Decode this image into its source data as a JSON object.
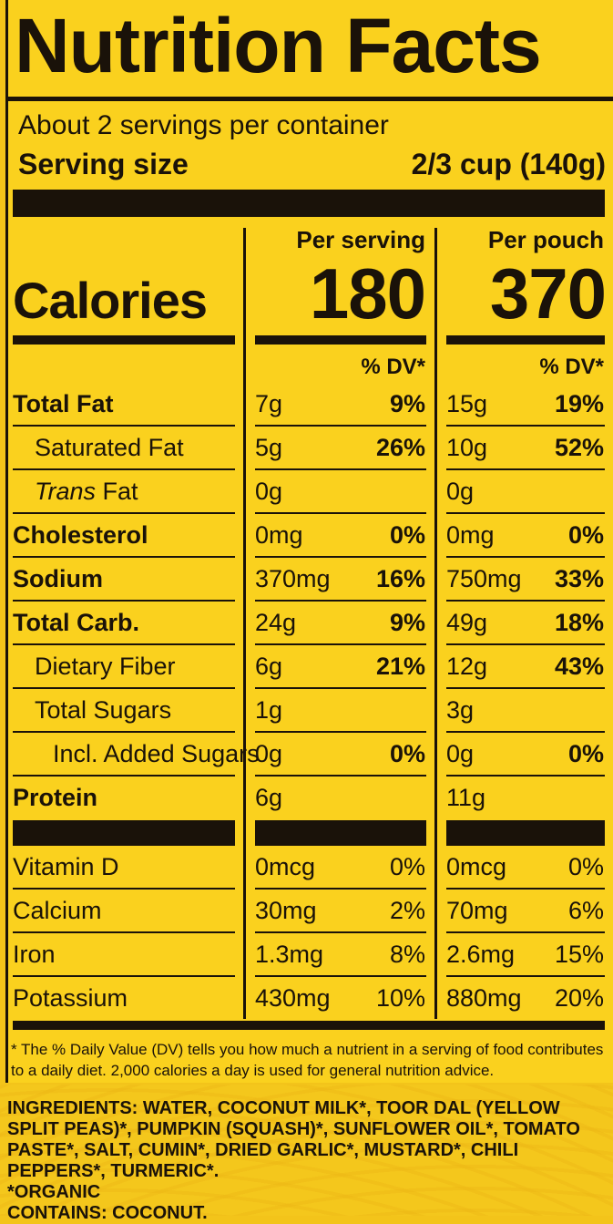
{
  "label": {
    "title": "Nutrition Facts",
    "servings_per_container": "About 2 servings per container",
    "serving_size_label": "Serving size",
    "serving_size_value": "2/3 cup (140g)",
    "columns": {
      "per_serving": "Per serving",
      "per_pouch": "Per pouch",
      "calories_label": "Calories",
      "calories_serving": "180",
      "calories_pouch": "370",
      "dv_header": "% DV*"
    },
    "nutrients": [
      {
        "name": "Total Fat",
        "s_amt": "7g",
        "s_dv": "9%",
        "p_amt": "15g",
        "p_dv": "19%"
      },
      {
        "name": "Saturated Fat",
        "s_amt": "5g",
        "s_dv": "26%",
        "p_amt": "10g",
        "p_dv": "52%"
      },
      {
        "name_italic": "Trans",
        "name_rest": " Fat",
        "s_amt": "0g",
        "s_dv": "",
        "p_amt": "0g",
        "p_dv": ""
      },
      {
        "name": "Cholesterol",
        "s_amt": "0mg",
        "s_dv": "0%",
        "p_amt": "0mg",
        "p_dv": "0%"
      },
      {
        "name": "Sodium",
        "s_amt": "370mg",
        "s_dv": "16%",
        "p_amt": "750mg",
        "p_dv": "33%"
      },
      {
        "name": "Total Carb.",
        "s_amt": "24g",
        "s_dv": "9%",
        "p_amt": "49g",
        "p_dv": "18%"
      },
      {
        "name": "Dietary Fiber",
        "s_amt": "6g",
        "s_dv": "21%",
        "p_amt": "12g",
        "p_dv": "43%"
      },
      {
        "name": "Total Sugars",
        "s_amt": "1g",
        "s_dv": "",
        "p_amt": "3g",
        "p_dv": ""
      },
      {
        "name": "Incl. Added Sugars",
        "s_amt": "0g",
        "s_dv": "0%",
        "p_amt": "0g",
        "p_dv": "0%"
      },
      {
        "name": "Protein",
        "s_amt": "6g",
        "s_dv": "",
        "p_amt": "11g",
        "p_dv": ""
      }
    ],
    "vitamins": [
      {
        "name": "Vitamin D",
        "s_amt": "0mcg",
        "s_dv": "0%",
        "p_amt": "0mcg",
        "p_dv": "0%"
      },
      {
        "name": "Calcium",
        "s_amt": "30mg",
        "s_dv": "2%",
        "p_amt": "70mg",
        "p_dv": "6%"
      },
      {
        "name": "Iron",
        "s_amt": "1.3mg",
        "s_dv": "8%",
        "p_amt": "2.6mg",
        "p_dv": "15%"
      },
      {
        "name": "Potassium",
        "s_amt": "430mg",
        "s_dv": "10%",
        "p_amt": "880mg",
        "p_dv": "20%"
      }
    ],
    "footnote": "* The % Daily Value (DV) tells you how much a nutrient in a serving of food contributes to a daily diet. 2,000 calories a day is used for general nutrition advice."
  },
  "ingredients": {
    "text": "INGREDIENTS: WATER, COCONUT MILK*, TOOR DAL (YELLOW SPLIT PEAS)*, PUMPKIN (SQUASH)*, SUNFLOWER OIL*, TOMATO PASTE*, SALT, CUMIN*, DRIED GARLIC*, MUSTARD*, CHILI PEPPERS*, TURMERIC*.",
    "organic_note": "*ORGANIC",
    "contains": "CONTAINS: COCONUT."
  },
  "colors": {
    "label_yellow": "#fad11e",
    "ink": "#1a1209"
  }
}
